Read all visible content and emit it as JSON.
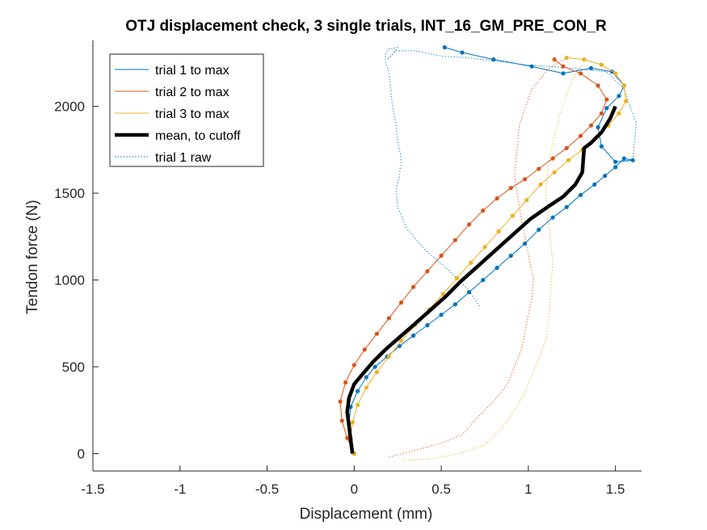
{
  "chart_data": {
    "type": "line",
    "title": "OTJ displacement check, 3 single trials, INT_16_GM_PRE_CON_R",
    "xlabel": "Displacement (mm)",
    "ylabel": "Tendon force (N)",
    "xlim": [
      -1.5,
      1.65
    ],
    "ylim": [
      -100,
      2380
    ],
    "xticks": [
      -1.5,
      -1,
      -0.5,
      0,
      0.5,
      1,
      1.5
    ],
    "xtick_labels": [
      "-1.5",
      "-1",
      "-0.5",
      "0",
      "0.5",
      "1",
      "1.5"
    ],
    "yticks": [
      0,
      500,
      1000,
      1500,
      2000
    ],
    "ytick_labels": [
      "0",
      "500",
      "1000",
      "1500",
      "2000"
    ],
    "grid": false,
    "legend_position": "top-left",
    "legend": [
      {
        "label": "trial 1 to max",
        "color": "#0072BD",
        "style": "thin"
      },
      {
        "label": "trial 2 to max",
        "color": "#D95319",
        "style": "thin"
      },
      {
        "label": "trial 3 to max",
        "color": "#EDB120",
        "style": "thin"
      },
      {
        "label": "mean, to cutoff",
        "color": "#000000",
        "style": "thick"
      },
      {
        "label": "trial 1 raw",
        "color": "#0072BD",
        "style": "dotted"
      }
    ],
    "series": [
      {
        "name": "trial 1 to max",
        "color": "#0072BD",
        "style": "thin-markers",
        "x": [
          0.0,
          -0.02,
          -0.03,
          -0.02,
          0.02,
          0.07,
          0.12,
          0.19,
          0.26,
          0.34,
          0.42,
          0.5,
          0.58,
          0.66,
          0.74,
          0.82,
          0.9,
          0.98,
          1.06,
          1.14,
          1.22,
          1.3,
          1.38,
          1.44,
          1.5,
          1.55,
          1.6,
          1.5,
          1.42,
          1.4,
          1.45,
          1.52,
          1.55,
          1.48,
          1.36,
          1.2,
          1.02,
          0.8,
          0.62,
          0.52
        ],
        "y": [
          0,
          80,
          170,
          270,
          360,
          440,
          500,
          560,
          620,
          680,
          740,
          800,
          860,
          930,
          1000,
          1070,
          1140,
          1210,
          1290,
          1360,
          1420,
          1490,
          1550,
          1600,
          1650,
          1700,
          1690,
          1680,
          1770,
          1880,
          1990,
          2060,
          2120,
          2200,
          2220,
          2190,
          2230,
          2270,
          2310,
          2340
        ]
      },
      {
        "name": "trial 2 to max",
        "color": "#D95319",
        "style": "thin-markers",
        "x": [
          0.0,
          -0.04,
          -0.07,
          -0.08,
          -0.05,
          0.0,
          0.06,
          0.13,
          0.2,
          0.27,
          0.34,
          0.42,
          0.5,
          0.58,
          0.66,
          0.74,
          0.82,
          0.9,
          0.98,
          1.06,
          1.14,
          1.22,
          1.3,
          1.36,
          1.42,
          1.45,
          1.4,
          1.3,
          1.2,
          1.15
        ],
        "y": [
          0,
          90,
          190,
          300,
          410,
          510,
          600,
          690,
          780,
          870,
          960,
          1050,
          1140,
          1230,
          1320,
          1400,
          1470,
          1530,
          1580,
          1640,
          1700,
          1760,
          1830,
          1890,
          1960,
          2040,
          2120,
          2190,
          2230,
          2270
        ]
      },
      {
        "name": "trial 3 to max",
        "color": "#EDB120",
        "style": "thin-markers",
        "x": [
          0.0,
          -0.02,
          -0.01,
          0.02,
          0.07,
          0.13,
          0.2,
          0.27,
          0.35,
          0.43,
          0.51,
          0.59,
          0.67,
          0.75,
          0.83,
          0.91,
          0.99,
          1.07,
          1.15,
          1.23,
          1.31,
          1.39,
          1.46,
          1.52,
          1.56,
          1.55,
          1.5,
          1.42,
          1.32,
          1.22
        ],
        "y": [
          0,
          90,
          180,
          280,
          380,
          470,
          560,
          650,
          740,
          830,
          920,
          1010,
          1100,
          1190,
          1280,
          1370,
          1460,
          1550,
          1620,
          1690,
          1750,
          1820,
          1890,
          1960,
          2030,
          2120,
          2190,
          2240,
          2270,
          2280
        ]
      },
      {
        "name": "mean, to cutoff",
        "color": "#000000",
        "style": "thick",
        "x": [
          -0.01,
          -0.02,
          -0.03,
          -0.04,
          -0.03,
          0.0,
          0.05,
          0.11,
          0.18,
          0.26,
          0.34,
          0.43,
          0.52,
          0.61,
          0.71,
          0.81,
          0.91,
          1.01,
          1.11,
          1.2,
          1.27,
          1.31,
          1.32,
          1.36,
          1.42,
          1.47,
          1.5
        ],
        "y": [
          0,
          80,
          160,
          240,
          320,
          400,
          460,
          530,
          600,
          670,
          740,
          820,
          900,
          990,
          1080,
          1170,
          1260,
          1350,
          1420,
          1480,
          1550,
          1620,
          1760,
          1790,
          1850,
          1930,
          2000
        ]
      },
      {
        "name": "trial 1 raw",
        "color": "#0072BD",
        "style": "dotted",
        "x": [
          0.72,
          0.65,
          0.55,
          0.4,
          0.3,
          0.25,
          0.24,
          0.26,
          0.27,
          0.25,
          0.24,
          0.22,
          0.21,
          0.2,
          0.18,
          0.18,
          0.2,
          0.25,
          0.22,
          0.19,
          0.24,
          0.35,
          0.5,
          0.65,
          0.82,
          0.98,
          1.12,
          1.25,
          1.34,
          1.45,
          1.55,
          1.62,
          1.6,
          1.56
        ],
        "y": [
          850,
          950,
          1050,
          1180,
          1300,
          1420,
          1520,
          1600,
          1700,
          1800,
          1900,
          2000,
          2100,
          2200,
          2250,
          2300,
          2330,
          2340,
          2300,
          2270,
          2320,
          2320,
          2290,
          2280,
          2260,
          2240,
          2230,
          2220,
          2210,
          2200,
          2100,
          1900,
          1700,
          1680
        ]
      },
      {
        "name": "trial 2 raw",
        "color": "#D95319",
        "style": "dotted",
        "x": [
          0.2,
          0.35,
          0.5,
          0.62,
          0.7,
          0.8,
          0.88,
          0.92,
          0.96,
          0.98,
          1.0,
          1.02,
          1.03,
          1.0,
          0.96,
          0.92,
          0.95,
          1.02,
          1.12,
          1.22
        ],
        "y": [
          -20,
          20,
          60,
          110,
          200,
          300,
          400,
          500,
          600,
          700,
          800,
          900,
          1000,
          1150,
          1350,
          1600,
          1900,
          2100,
          2220,
          2280
        ]
      },
      {
        "name": "trial 3 raw",
        "color": "#EDB120",
        "style": "dotted",
        "x": [
          0.28,
          0.45,
          0.6,
          0.75,
          0.85,
          0.92,
          0.98,
          1.02,
          1.06,
          1.1,
          1.12,
          1.13,
          1.14,
          1.12,
          1.1,
          1.12,
          1.18,
          1.25,
          1.32
        ],
        "y": [
          -40,
          -30,
          0,
          50,
          150,
          250,
          350,
          450,
          550,
          650,
          800,
          950,
          1100,
          1300,
          1500,
          1700,
          1950,
          2150,
          2250
        ]
      }
    ]
  }
}
